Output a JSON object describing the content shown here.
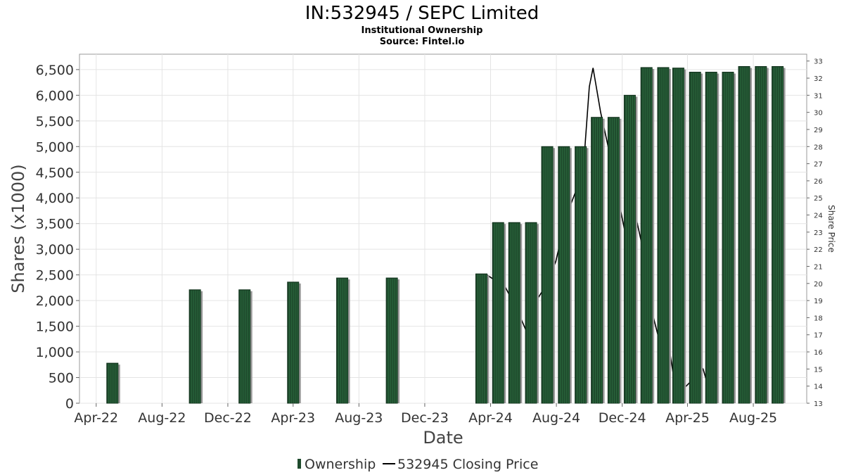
{
  "title": "IN:532945 / SEPC Limited",
  "subtitle": "Institutional Ownership",
  "source": "Source: Fintel.io",
  "chart_data": {
    "type": "bar",
    "xlabel": "Date",
    "ylabel": "Shares (x1000)",
    "y2label": "Share Price",
    "ylim": [
      0,
      6800
    ],
    "y_ticks": [
      "0",
      "500",
      "1,000",
      "1,500",
      "2,000",
      "2,500",
      "3,000",
      "3,500",
      "4,000",
      "4,500",
      "5,000",
      "5,500",
      "6,000",
      "6,500"
    ],
    "y_tick_values": [
      0,
      500,
      1000,
      1500,
      2000,
      2500,
      3000,
      3500,
      4000,
      4500,
      5000,
      5500,
      6000,
      6500
    ],
    "y2lim": [
      13,
      33.4
    ],
    "y2_ticks": [
      "13",
      "14",
      "15",
      "16",
      "17",
      "18",
      "19",
      "20",
      "21",
      "22",
      "23",
      "24",
      "25",
      "26",
      "27",
      "28",
      "29",
      "30",
      "31",
      "32",
      "33"
    ],
    "y2_tick_values": [
      13,
      14,
      15,
      16,
      17,
      18,
      19,
      20,
      21,
      22,
      23,
      24,
      25,
      26,
      27,
      28,
      29,
      30,
      31,
      32,
      33
    ],
    "x_range": [
      "2022-03-01",
      "2025-11-08"
    ],
    "x_ticks": [
      {
        "label": "Apr-22",
        "date": "2022-04-01"
      },
      {
        "label": "Aug-22",
        "date": "2022-08-01"
      },
      {
        "label": "Dec-22",
        "date": "2022-12-01"
      },
      {
        "label": "Apr-23",
        "date": "2023-04-01"
      },
      {
        "label": "Aug-23",
        "date": "2023-08-01"
      },
      {
        "label": "Dec-23",
        "date": "2023-12-01"
      },
      {
        "label": "Apr-24",
        "date": "2024-04-01"
      },
      {
        "label": "Aug-24",
        "date": "2024-08-01"
      },
      {
        "label": "Dec-24",
        "date": "2024-12-01"
      },
      {
        "label": "Apr-25",
        "date": "2025-04-01"
      },
      {
        "label": "Aug-25",
        "date": "2025-08-01"
      }
    ],
    "grid": true,
    "legend_position": "bottom",
    "series": [
      {
        "name": "Ownership",
        "color": "#1e4a2c",
        "points": [
          {
            "date": "2022-05-01",
            "value": 780
          },
          {
            "date": "2022-10-01",
            "value": 2210
          },
          {
            "date": "2023-01-01",
            "value": 2210
          },
          {
            "date": "2023-04-01",
            "value": 2360
          },
          {
            "date": "2023-07-01",
            "value": 2440
          },
          {
            "date": "2023-10-01",
            "value": 2440
          },
          {
            "date": "2024-03-15",
            "value": 2520
          },
          {
            "date": "2024-04-15",
            "value": 3520
          },
          {
            "date": "2024-05-15",
            "value": 3520
          },
          {
            "date": "2024-06-15",
            "value": 3520
          },
          {
            "date": "2024-07-15",
            "value": 5000
          },
          {
            "date": "2024-08-15",
            "value": 5000
          },
          {
            "date": "2024-09-15",
            "value": 5000
          },
          {
            "date": "2024-10-15",
            "value": 5570
          },
          {
            "date": "2024-11-15",
            "value": 5570
          },
          {
            "date": "2024-12-15",
            "value": 6000
          },
          {
            "date": "2025-01-15",
            "value": 6540
          },
          {
            "date": "2025-02-15",
            "value": 6540
          },
          {
            "date": "2025-03-15",
            "value": 6530
          },
          {
            "date": "2025-04-15",
            "value": 6450
          },
          {
            "date": "2025-05-15",
            "value": 6450
          },
          {
            "date": "2025-06-15",
            "value": 6450
          },
          {
            "date": "2025-07-15",
            "value": 6560
          },
          {
            "date": "2025-08-15",
            "value": 6560
          },
          {
            "date": "2025-09-15",
            "value": 6560
          }
        ]
      },
      {
        "name": "532945 Closing Price",
        "color": "#000000",
        "points": [
          {
            "date": "2024-03-25",
            "value": 20.5
          },
          {
            "date": "2024-04-28",
            "value": 19.8
          },
          {
            "date": "2024-05-20",
            "value": 18.5
          },
          {
            "date": "2024-06-05",
            "value": 17.3
          },
          {
            "date": "2024-06-25",
            "value": 19.0
          },
          {
            "date": "2024-07-15",
            "value": 20.0
          },
          {
            "date": "2024-07-31",
            "value": 21.3
          },
          {
            "date": "2024-08-20",
            "value": 24.0
          },
          {
            "date": "2024-09-05",
            "value": 25.3
          },
          {
            "date": "2024-09-20",
            "value": 26.7
          },
          {
            "date": "2024-10-01",
            "value": 31.5
          },
          {
            "date": "2024-10-08",
            "value": 32.6
          },
          {
            "date": "2024-10-22",
            "value": 30.0
          },
          {
            "date": "2024-11-05",
            "value": 28.0
          },
          {
            "date": "2024-11-20",
            "value": 25.5
          },
          {
            "date": "2024-12-05",
            "value": 23.2
          },
          {
            "date": "2024-12-20",
            "value": 24.8
          },
          {
            "date": "2025-01-05",
            "value": 22.5
          },
          {
            "date": "2025-01-20",
            "value": 19.0
          },
          {
            "date": "2025-02-05",
            "value": 17.0
          },
          {
            "date": "2025-02-20",
            "value": 17.5
          },
          {
            "date": "2025-03-05",
            "value": 14.8
          },
          {
            "date": "2025-03-20",
            "value": 13.7
          },
          {
            "date": "2025-04-05",
            "value": 14.2
          },
          {
            "date": "2025-04-20",
            "value": 15.3
          },
          {
            "date": "2025-04-30",
            "value": 15.0
          },
          {
            "date": "2025-05-10",
            "value": 13.9
          }
        ]
      }
    ]
  }
}
